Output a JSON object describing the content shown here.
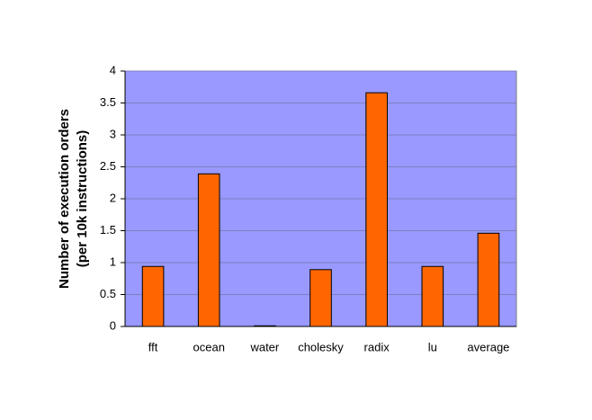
{
  "chart_data": {
    "type": "bar",
    "ylabel": [
      "Number of execution orders",
      "(per 10k instructions)"
    ],
    "categories": [
      "fft",
      "ocean",
      "water",
      "cholesky",
      "radix",
      "lu",
      "average"
    ],
    "values": [
      0.94,
      2.39,
      0.01,
      0.89,
      3.66,
      0.94,
      1.46
    ],
    "color": "#ff6600",
    "background": "#9999ff",
    "ylim": [
      0,
      4
    ],
    "yticks": [
      0,
      0.5,
      1,
      1.5,
      2,
      2.5,
      3,
      3.5,
      4
    ],
    "grid": true
  }
}
